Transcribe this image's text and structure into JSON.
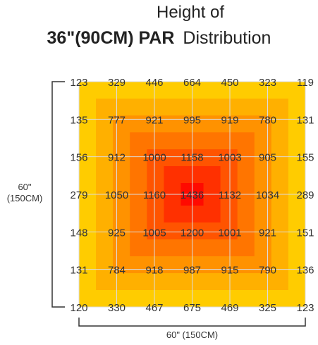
{
  "title": {
    "line1": "Height of",
    "line2_bold": "36\"(90CM) PAR",
    "line2_rest": "Distribution"
  },
  "dimension_y": {
    "line1": "60\"",
    "line2": "(150CM)"
  },
  "dimension_x": "60\"  (150CM)",
  "colors": {
    "zones": [
      "#FFCC00",
      "#FFB000",
      "#FF9200",
      "#FF7500",
      "#FF5400",
      "#FF3000",
      "#FF0A00"
    ],
    "grid": "#dcdcdc",
    "text": "#333333"
  },
  "chart_data": {
    "type": "heatmap",
    "title": "Height of 36\"(90CM) PAR Distribution",
    "xlabel": "60\"  (150CM)",
    "ylabel": "60\" (150CM)",
    "rows": 7,
    "cols": 7,
    "values": [
      [
        123,
        329,
        446,
        664,
        450,
        323,
        119
      ],
      [
        135,
        777,
        921,
        995,
        919,
        780,
        131
      ],
      [
        156,
        912,
        1000,
        1158,
        1003,
        905,
        155
      ],
      [
        279,
        1050,
        1160,
        1436,
        1132,
        1034,
        289
      ],
      [
        148,
        925,
        1005,
        1200,
        1001,
        921,
        151
      ],
      [
        131,
        784,
        918,
        987,
        915,
        790,
        136
      ],
      [
        120,
        330,
        467,
        675,
        469,
        325,
        123
      ]
    ]
  }
}
